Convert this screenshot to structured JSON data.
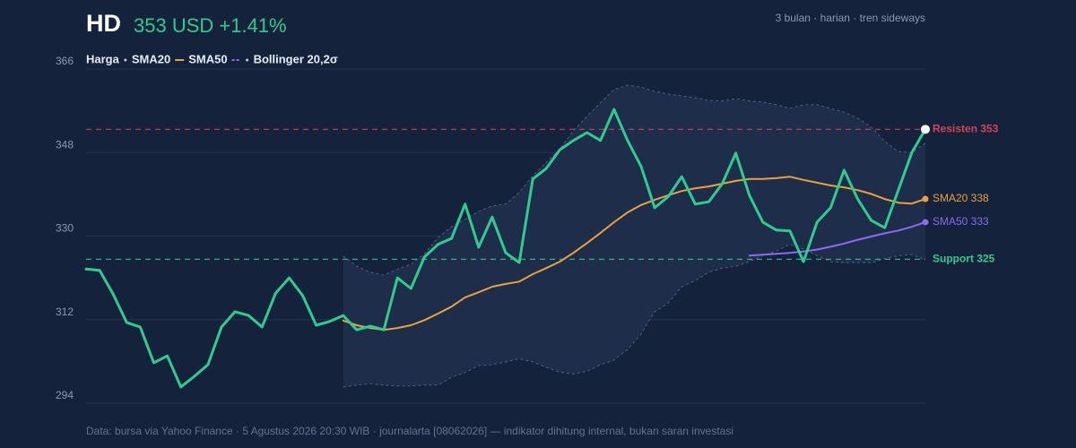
{
  "chart_data": {
    "type": "line",
    "header": {
      "ticker": "HD",
      "quote": "353 USD +1.41%"
    },
    "subtitle": "3 bulan · harian · tren sideways",
    "footer": "Data: bursa via Yahoo Finance · 5 Agustus 2026 20:30 WIB · journalarta [08062026] — indikator dihitung internal, bukan saran investasi",
    "ylim": [
      294,
      366
    ],
    "yticks": [
      294,
      312,
      330,
      348,
      366
    ],
    "grid": true,
    "series": [
      {
        "name": "Harga",
        "color": "#2ecc8f",
        "values": [
          322.9,
          322.6,
          317.5,
          311.4,
          310.4,
          302.7,
          304.2,
          297.5,
          299.8,
          302.3,
          310.4,
          313.7,
          312.9,
          310.4,
          317.7,
          321.0,
          317.2,
          310.8,
          311.6,
          312.9,
          309.8,
          310.6,
          309.8,
          321.0,
          318.7,
          325.5,
          328.2,
          329.5,
          336.9,
          327.6,
          334.1,
          326.4,
          324.3,
          342.3,
          344.6,
          348.6,
          350.6,
          352.3,
          350.6,
          357.3,
          350.6,
          345.0,
          336.1,
          338.5,
          342.8,
          336.9,
          337.4,
          341.3,
          347.9,
          338.8,
          333.0,
          331.3,
          331.1,
          324.5,
          333.0,
          336.1,
          344.2,
          338.0,
          333.4,
          331.8,
          339.9,
          348.0,
          353
        ]
      },
      {
        "name": "SMA20",
        "color": "#e8a33a",
        "end_label": "SMA20 338",
        "values": [
          null,
          null,
          null,
          null,
          null,
          null,
          null,
          null,
          null,
          null,
          null,
          null,
          null,
          null,
          null,
          null,
          null,
          null,
          null,
          311.8,
          310.8,
          310.2,
          309.8,
          310.2,
          310.8,
          311.9,
          313.3,
          314.8,
          316.8,
          317.9,
          319.1,
          319.7,
          320.2,
          321.8,
          323.1,
          324.5,
          326.4,
          328.5,
          330.7,
          333.0,
          335.1,
          336.7,
          337.8,
          338.8,
          339.7,
          340.3,
          340.7,
          341.3,
          341.9,
          342.3,
          342.3,
          342.5,
          342.8,
          342.1,
          341.5,
          340.9,
          340.5,
          339.9,
          339.1,
          338.0,
          337.2,
          337.0,
          338
        ]
      },
      {
        "name": "SMA50",
        "color": "#8b6cf0",
        "end_label": "SMA50 333",
        "values": [
          null,
          null,
          null,
          null,
          null,
          null,
          null,
          null,
          null,
          null,
          null,
          null,
          null,
          null,
          null,
          null,
          null,
          null,
          null,
          null,
          null,
          null,
          null,
          null,
          null,
          null,
          null,
          null,
          null,
          null,
          null,
          null,
          null,
          null,
          null,
          null,
          null,
          null,
          null,
          null,
          null,
          null,
          null,
          null,
          null,
          null,
          null,
          null,
          null,
          325.8,
          326.0,
          326.2,
          326.4,
          326.7,
          327.1,
          327.7,
          328.4,
          329.2,
          329.9,
          330.6,
          331.2,
          332.0,
          333
        ]
      }
    ],
    "bands": {
      "name": "Bollinger 20,2σ",
      "color": "#4c5f85",
      "upper": [
        null,
        null,
        null,
        null,
        null,
        null,
        null,
        null,
        null,
        null,
        null,
        null,
        null,
        null,
        null,
        null,
        null,
        null,
        null,
        325.7,
        323.5,
        322.2,
        321.6,
        322.9,
        323.9,
        326.2,
        329.7,
        332.0,
        333.6,
        335.3,
        336.5,
        336.9,
        339.4,
        343.0,
        345.9,
        348.8,
        352.7,
        355.8,
        358.7,
        361.6,
        362.5,
        362.1,
        361.2,
        360.6,
        360.2,
        359.8,
        359.2,
        359.1,
        359.6,
        359.1,
        358.9,
        358.3,
        357.5,
        358.3,
        358.3,
        357.5,
        356.7,
        355.4,
        353.5,
        350.4,
        348.2,
        348.0,
        350.0
      ],
      "lower": [
        null,
        null,
        null,
        null,
        null,
        null,
        null,
        null,
        null,
        null,
        null,
        null,
        null,
        null,
        null,
        null,
        null,
        null,
        null,
        297.5,
        297.9,
        298.2,
        297.9,
        297.7,
        297.7,
        297.9,
        297.9,
        299.6,
        300.6,
        302.1,
        302.3,
        302.9,
        303.6,
        302.9,
        301.7,
        300.7,
        300.3,
        300.9,
        302.3,
        303.3,
        305.6,
        308.9,
        313.7,
        315.6,
        319.1,
        320.4,
        322.2,
        323.1,
        323.5,
        324.5,
        325.8,
        326.8,
        328.2,
        327.2,
        325.8,
        324.5,
        324.3,
        324.3,
        324.3,
        325.1,
        325.8,
        326.0,
        324.9
      ]
    },
    "annotations": [
      {
        "label": "Resisten 353",
        "value": 353,
        "color": "#d64156"
      },
      {
        "label": "Support 325",
        "value": 325,
        "color": "#2ecc8f"
      }
    ]
  }
}
